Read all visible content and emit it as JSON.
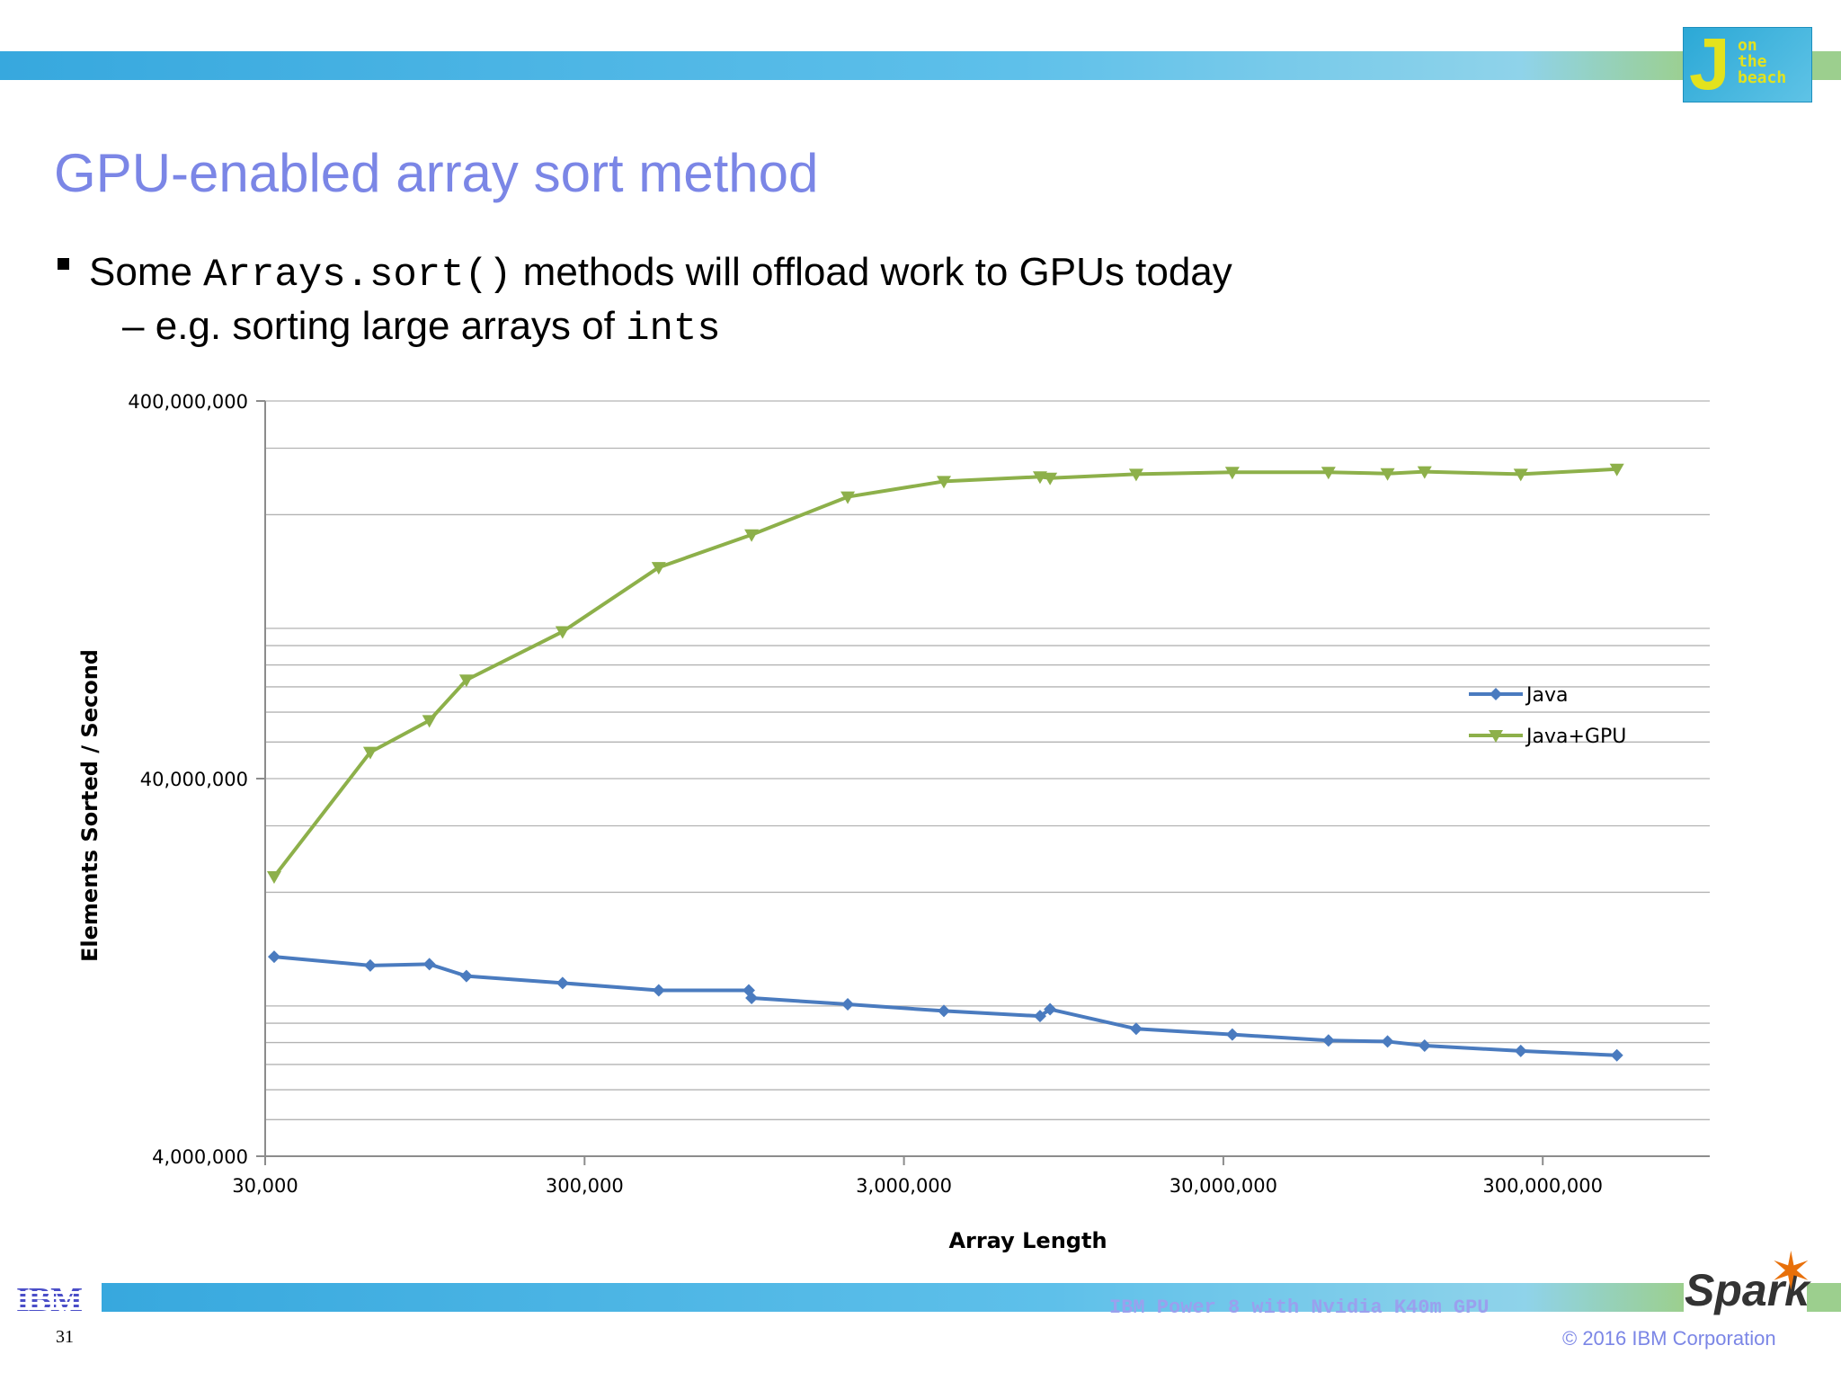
{
  "slide": {
    "title": "GPU-enabled array sort method",
    "bullet1_pre": "Some ",
    "bullet1_code": "Arrays.sort()",
    "bullet1_post": " methods will offload work to GPUs today",
    "bullet2_dash": "–",
    "bullet2_pre": "e.g. sorting large arrays of ",
    "bullet2_code": "ints",
    "footer_note": "IBM Power 8 with Nvidia K40m GPU",
    "page_number": "31",
    "copyright": "© 2016 IBM Corporation",
    "ibm_logo": "IBM",
    "event_logo_text": [
      "J",
      "on",
      "the",
      "beach"
    ],
    "spark_logo": "Spark"
  },
  "colors": {
    "accent_blue": "#37a8de",
    "accent_green": "#9ccf8e",
    "title": "#7b86e6",
    "java_series": "#4a7bbf",
    "gpu_series": "#8db04a"
  },
  "chart_data": {
    "type": "line",
    "xscale": "log",
    "yscale": "log",
    "xlabel": "Array Length",
    "ylabel": "Elements Sorted / Second",
    "xlim": [
      30000,
      1000000000
    ],
    "ylim": [
      4000000,
      400000000
    ],
    "x_ticks": [
      {
        "value": 30000,
        "label": "30,000"
      },
      {
        "value": 300000,
        "label": "300,000"
      },
      {
        "value": 3000000,
        "label": "3,000,000"
      },
      {
        "value": 30000000,
        "label": "30,000,000"
      },
      {
        "value": 300000000,
        "label": "300,000,000"
      }
    ],
    "y_ticks": [
      {
        "value": 4000000,
        "label": "4,000,000"
      },
      {
        "value": 40000000,
        "label": "40,000,000"
      },
      {
        "value": 400000000,
        "label": "400,000,000"
      }
    ],
    "grid": true,
    "legend_position": "right",
    "series": [
      {
        "name": "Java",
        "marker": "diamond",
        "points": [
          [
            32000,
            13500000
          ],
          [
            64000,
            12800000
          ],
          [
            98000,
            12900000
          ],
          [
            128000,
            12000000
          ],
          [
            256000,
            11500000
          ],
          [
            512000,
            11000000
          ],
          [
            980000,
            11000000
          ],
          [
            1000000,
            10500000
          ],
          [
            2000000,
            10100000
          ],
          [
            4000000,
            9700000
          ],
          [
            8000000,
            9400000
          ],
          [
            8600000,
            9800000
          ],
          [
            16000000,
            8700000
          ],
          [
            32000000,
            8400000
          ],
          [
            64000000,
            8100000
          ],
          [
            98000000,
            8050000
          ],
          [
            128000000,
            7850000
          ],
          [
            256000000,
            7600000
          ],
          [
            512000000,
            7400000
          ]
        ]
      },
      {
        "name": "Java+GPU",
        "marker": "triangle-down",
        "points": [
          [
            32000,
            22000000
          ],
          [
            64000,
            47000000
          ],
          [
            98000,
            57000000
          ],
          [
            128000,
            73000000
          ],
          [
            256000,
            98000000
          ],
          [
            512000,
            145000000
          ],
          [
            1000000,
            177000000
          ],
          [
            2000000,
            223000000
          ],
          [
            4000000,
            245000000
          ],
          [
            8000000,
            252000000
          ],
          [
            8600000,
            250000000
          ],
          [
            16000000,
            256000000
          ],
          [
            32000000,
            259000000
          ],
          [
            64000000,
            259000000
          ],
          [
            98000000,
            257000000
          ],
          [
            128000000,
            260000000
          ],
          [
            256000000,
            256000000
          ],
          [
            512000000,
            264000000
          ]
        ]
      }
    ]
  }
}
